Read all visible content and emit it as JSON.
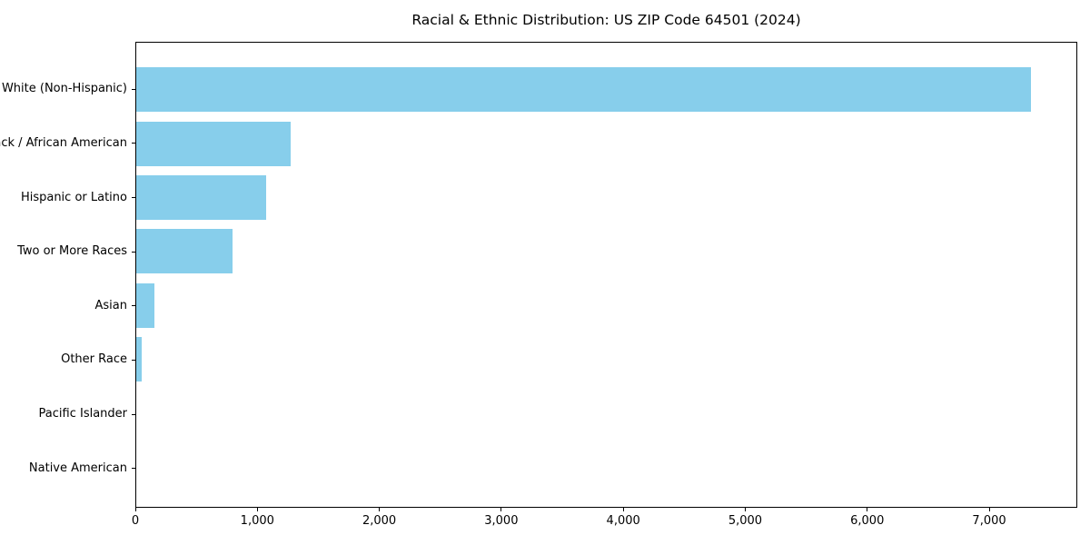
{
  "colors": {
    "bar": "#87CEEB",
    "axis": "#000000",
    "text": "#000000",
    "background": "#FFFFFF"
  },
  "chart_data": {
    "type": "bar",
    "orientation": "horizontal",
    "title": "Racial & Ethnic Distribution: US ZIP Code 64501 (2024)",
    "categories": [
      "White (Non-Hispanic)",
      "Black / African American",
      "Hispanic or Latino",
      "Two or More Races",
      "Asian",
      "Other Race",
      "Pacific Islander",
      "Native American"
    ],
    "values": [
      7350,
      1270,
      1065,
      790,
      150,
      48,
      0,
      0
    ],
    "bar_color": "#87CEEB",
    "xlabel": "",
    "ylabel": "",
    "xlim": [
      0,
      7722
    ],
    "xticks": [
      0,
      1000,
      2000,
      3000,
      4000,
      5000,
      6000,
      7000
    ],
    "xtick_labels": [
      "0",
      "1,000",
      "2,000",
      "3,000",
      "4,000",
      "5,000",
      "6,000",
      "7,000"
    ],
    "grid": false,
    "legend": null
  }
}
